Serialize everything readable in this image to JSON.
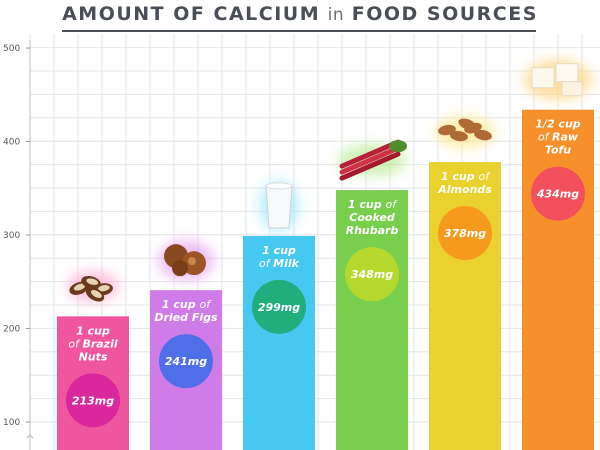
{
  "chart_data": {
    "type": "bar",
    "title": "AMOUNT OF CALCIUM in FOOD SOURCES",
    "title_parts": [
      {
        "text": "AMOUNT OF CALCIUM",
        "style": "bold"
      },
      {
        "text": "in",
        "style": "light"
      },
      {
        "text": "FOOD SOURCES",
        "style": "bold"
      }
    ],
    "xlabel": "",
    "ylabel": "",
    "ylim": [
      100,
      500
    ],
    "yticks": [
      "100",
      "200",
      "300",
      "400",
      "500"
    ],
    "grid": true,
    "unit": "mg",
    "categories": [
      "1 cup of Brazil Nuts",
      "1 cup of Dried Figs",
      "1 cup of Milk",
      "1 cup of Cooked Rhubarb",
      "1 cup of Almonds",
      "1/2 cup of Raw Tofu"
    ],
    "values": [
      213,
      241,
      299,
      348,
      378,
      434
    ],
    "bars": [
      {
        "label_lines": [
          [
            "1 cup"
          ],
          [
            "of ",
            "Brazil"
          ],
          [
            "Nuts"
          ]
        ],
        "value_label": "213mg",
        "color": "#f0569e",
        "circle_color": "#d9289c",
        "icon": "brazil-nuts-icon"
      },
      {
        "label_lines": [
          [
            "1 cup ",
            "of"
          ],
          [
            "Dried Figs"
          ]
        ],
        "value_label": "241mg",
        "color": "#cf7ce8",
        "circle_color": "#4f6fe8",
        "icon": "dried-figs-icon"
      },
      {
        "label_lines": [
          [
            "1 cup"
          ],
          [
            "of ",
            "Milk"
          ]
        ],
        "value_label": "299mg",
        "color": "#45c9f0",
        "circle_color": "#1fae7c",
        "icon": "milk-glass-icon"
      },
      {
        "label_lines": [
          [
            "1 cup ",
            "of"
          ],
          [
            "Cooked"
          ],
          [
            "Rhubarb"
          ]
        ],
        "value_label": "348mg",
        "color": "#77cf4d",
        "circle_color": "#b5d82c",
        "icon": "rhubarb-icon"
      },
      {
        "label_lines": [
          [
            "1 cup ",
            "of"
          ],
          [
            "Almonds"
          ]
        ],
        "value_label": "378mg",
        "color": "#e9d12e",
        "circle_color": "#f59a1c",
        "icon": "almonds-icon"
      },
      {
        "label_lines": [
          [
            "1/2 cup"
          ],
          [
            "of ",
            "Raw"
          ],
          [
            "Tofu"
          ]
        ],
        "value_label": "434mg",
        "color": "#f7902a",
        "circle_color": "#f2505c",
        "icon": "tofu-icon"
      }
    ]
  }
}
